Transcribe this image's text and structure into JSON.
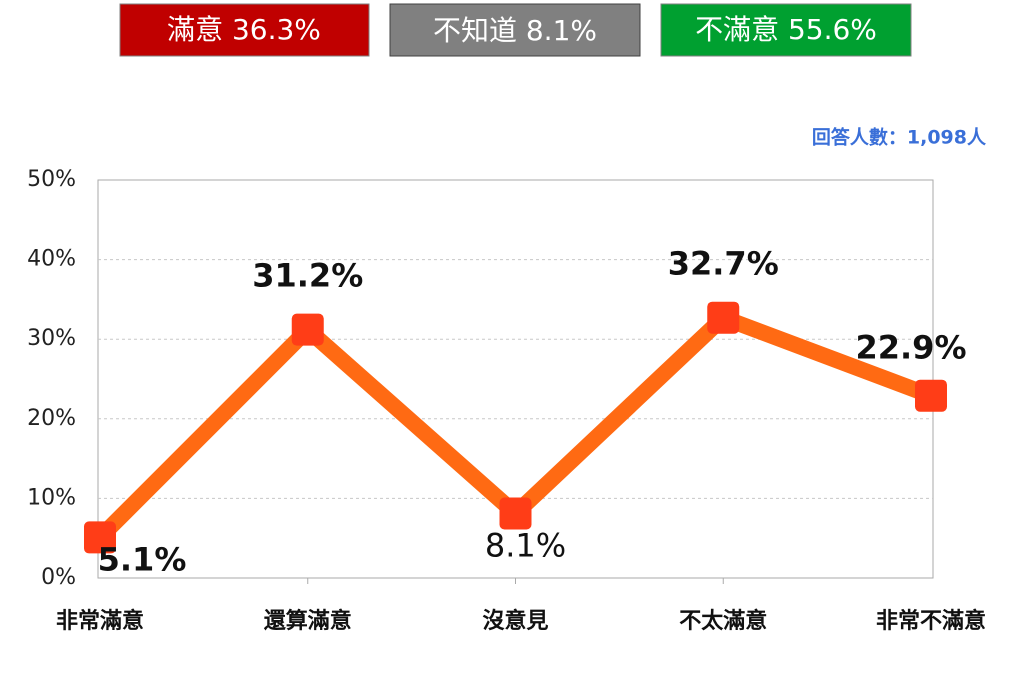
{
  "summary": [
    "滿意 36.3%",
    "不知道 8.1%",
    "不滿意 55.6%"
  ],
  "chart_data": {
    "type": "line",
    "note": "回答人數：1,098人",
    "categories": [
      "非常滿意",
      "還算滿意",
      "沒意見",
      "不太滿意",
      "非常不滿意"
    ],
    "values": [
      5.1,
      31.2,
      8.1,
      32.7,
      22.9
    ],
    "value_labels": [
      "5.1%",
      "31.2%",
      "8.1%",
      "32.7%",
      "22.9%"
    ],
    "color": "#ff6a13",
    "marker_color": "#ff3d17",
    "ylim": [
      0,
      50
    ],
    "yticks": [
      {
        "value": 0,
        "label": "0%"
      },
      {
        "value": 10,
        "label": "10%"
      },
      {
        "value": 20,
        "label": "20%"
      },
      {
        "value": 30,
        "label": "30%"
      },
      {
        "value": 40,
        "label": "40%"
      },
      {
        "value": 50,
        "label": "50%"
      }
    ],
    "grid": true
  }
}
